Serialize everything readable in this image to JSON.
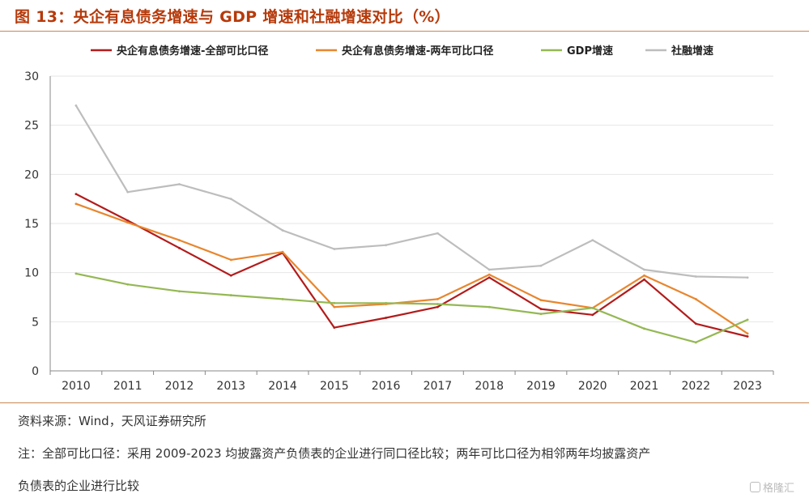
{
  "title": "图 13：央企有息债务增速与 GDP 增速和社融增速对比（%）",
  "source": "资料来源：Wind，天风证券研究所",
  "note_line1": "注：全部可比口径：采用 2009-2023 均披露资产负债表的企业进行同口径比较；两年可比口径为相邻两年均披露资产",
  "note_line2": "负债表的企业进行比较",
  "watermark": "格隆汇",
  "chart_data": {
    "type": "line",
    "x": [
      "2010",
      "2011",
      "2012",
      "2013",
      "2014",
      "2015",
      "2016",
      "2017",
      "2018",
      "2019",
      "2020",
      "2021",
      "2022",
      "2023"
    ],
    "ylim": [
      0,
      30
    ],
    "yticks": [
      0,
      5,
      10,
      15,
      20,
      25,
      30
    ],
    "grid": true,
    "legend_position": "top",
    "series": [
      {
        "name": "央企有息债务增速-全部可比口径",
        "color": "#b31b1b",
        "values": [
          18.0,
          15.3,
          12.5,
          9.7,
          12.0,
          4.4,
          5.4,
          6.5,
          9.5,
          6.3,
          5.7,
          9.3,
          4.8,
          3.5
        ]
      },
      {
        "name": "央企有息债务增速-两年可比口径",
        "color": "#e8862e",
        "values": [
          17.0,
          15.1,
          13.3,
          11.3,
          12.1,
          6.5,
          6.8,
          7.3,
          9.8,
          7.2,
          6.4,
          9.7,
          7.3,
          3.8
        ]
      },
      {
        "name": "GDP增速",
        "color": "#94b853",
        "values": [
          9.9,
          8.8,
          8.1,
          7.7,
          7.3,
          6.9,
          6.9,
          6.8,
          6.5,
          5.8,
          6.4,
          4.3,
          2.9,
          5.2
        ]
      },
      {
        "name": "社融增速",
        "color": "#bdbdbd",
        "values": [
          27.0,
          18.2,
          19.0,
          17.5,
          14.3,
          12.4,
          12.8,
          14.0,
          10.3,
          10.7,
          13.3,
          10.3,
          9.6,
          9.5
        ]
      }
    ]
  }
}
